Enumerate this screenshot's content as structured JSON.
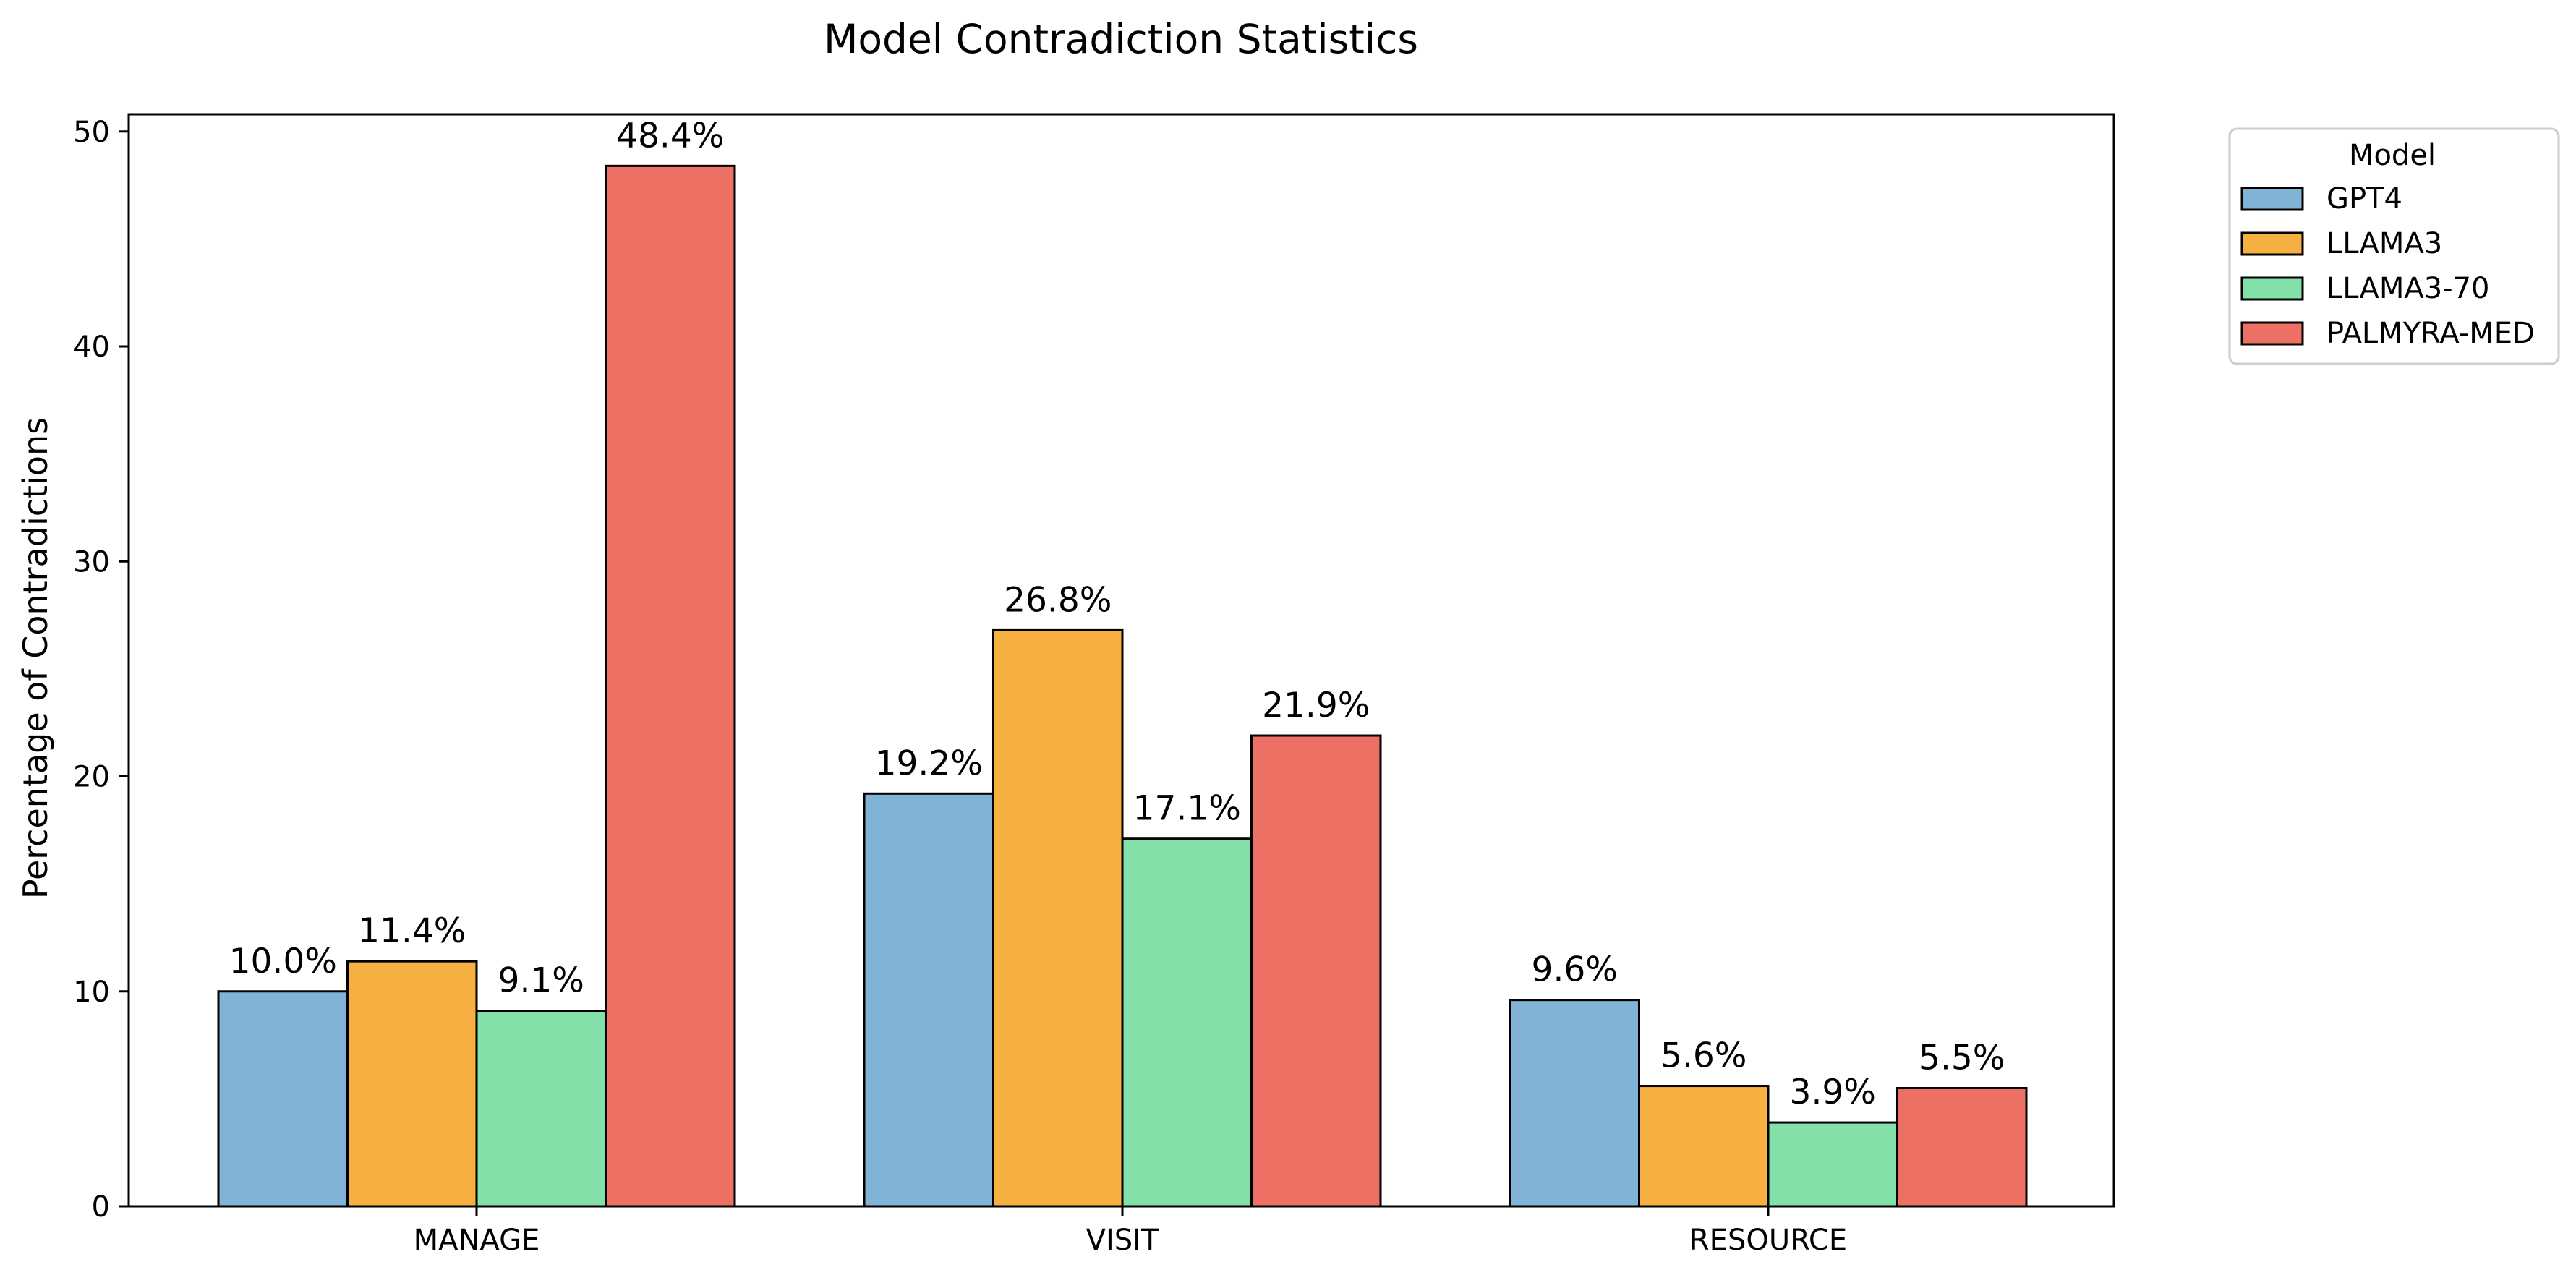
{
  "chart_data": {
    "type": "bar",
    "title": "Model Contradiction Statistics",
    "xlabel": "",
    "ylabel": "Percentage of Contradictions",
    "categories": [
      "MANAGE",
      "VISIT",
      "RESOURCE"
    ],
    "ylim": [
      0,
      50.8
    ],
    "yticks": [
      0,
      10,
      20,
      30,
      40,
      50
    ],
    "grid": false,
    "legend": {
      "title": "Model",
      "placement": "outside-top-right"
    },
    "series": [
      {
        "name": "GPT4",
        "color": "#80b3d6",
        "values": [
          10.0,
          19.2,
          9.6
        ],
        "labels": [
          "10.0%",
          "19.2%",
          "9.6%"
        ]
      },
      {
        "name": "LLAMA3",
        "color": "#f5b041",
        "values": [
          11.4,
          26.8,
          5.6
        ],
        "labels": [
          "11.4%",
          "26.8%",
          "5.6%"
        ]
      },
      {
        "name": "LLAMA3-70",
        "color": "#83e0a9",
        "values": [
          9.1,
          17.1,
          3.9
        ],
        "labels": [
          "9.1%",
          "17.1%",
          "3.9%"
        ]
      },
      {
        "name": "PALMYRA-MED",
        "color": "#ec7063",
        "values": [
          48.4,
          21.9,
          5.5
        ],
        "labels": [
          "48.4%",
          "21.9%",
          "5.5%"
        ]
      }
    ]
  }
}
